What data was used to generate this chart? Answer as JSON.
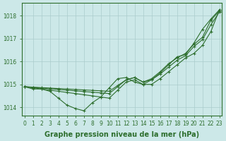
{
  "x": [
    0,
    1,
    2,
    3,
    4,
    5,
    6,
    7,
    8,
    9,
    10,
    11,
    12,
    13,
    14,
    15,
    16,
    17,
    18,
    19,
    20,
    21,
    22,
    23
  ],
  "series": [
    [
      1014.9,
      1014.85,
      1014.8,
      1014.75,
      1014.7,
      1014.65,
      1014.6,
      1014.55,
      1014.5,
      1014.45,
      1014.4,
      1014.75,
      1015.1,
      1015.2,
      1015.0,
      1015.2,
      1015.5,
      1015.85,
      1016.2,
      1016.3,
      1016.8,
      1017.4,
      1017.85,
      1018.25
    ],
    [
      1014.9,
      1014.87,
      1014.84,
      1014.81,
      1014.78,
      1014.75,
      1014.72,
      1014.69,
      1014.66,
      1014.63,
      1014.6,
      1014.9,
      1015.2,
      1015.3,
      1015.1,
      1015.25,
      1015.55,
      1015.9,
      1016.15,
      1016.35,
      1016.75,
      1017.05,
      1017.8,
      1018.2
    ],
    [
      1014.9,
      1014.88,
      1014.86,
      1014.84,
      1014.82,
      1014.8,
      1014.78,
      1014.76,
      1014.74,
      1014.72,
      1014.7,
      1014.95,
      1015.2,
      1015.3,
      1015.1,
      1015.2,
      1015.45,
      1015.75,
      1016.05,
      1016.25,
      1016.65,
      1016.95,
      1017.6,
      1018.15
    ],
    [
      1014.9,
      1014.8,
      1014.8,
      1014.7,
      1014.4,
      1014.1,
      1013.95,
      1013.85,
      1014.2,
      1014.45,
      1014.85,
      1015.25,
      1015.3,
      1015.1,
      1015.0,
      1015.0,
      1015.25,
      1015.55,
      1015.85,
      1016.15,
      1016.35,
      1016.7,
      1017.3,
      1018.25
    ]
  ],
  "line_color": "#2d6e2d",
  "marker": "+",
  "markersize": 3,
  "linewidth": 0.8,
  "bg_color": "#cce8e8",
  "grid_color": "#aacccc",
  "xlabel": "Graphe pression niveau de la mer (hPa)",
  "xlabel_fontsize": 7,
  "xlabel_bold": true,
  "ylabel_ticks": [
    1014,
    1015,
    1016,
    1017,
    1018
  ],
  "xtick_labels": [
    "0",
    "1",
    "2",
    "3",
    "4",
    "5",
    "6",
    "7",
    "8",
    "9",
    "10",
    "11",
    "12",
    "13",
    "14",
    "15",
    "16",
    "17",
    "18",
    "19",
    "20",
    "21",
    "22",
    "23"
  ],
  "ylim": [
    1013.65,
    1018.55
  ],
  "xlim": [
    -0.3,
    23.3
  ],
  "tick_fontsize": 5.5,
  "axis_color": "#2d6e2d",
  "spine_color": "#2d6e2d"
}
